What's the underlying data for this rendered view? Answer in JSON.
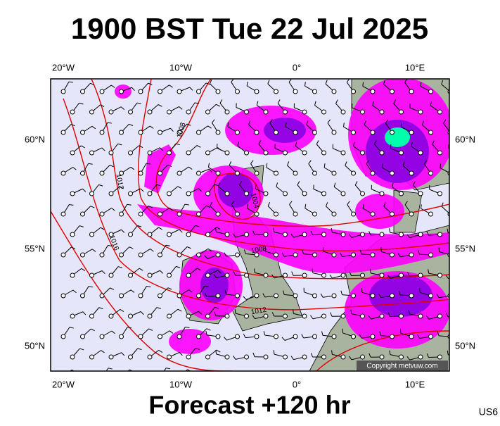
{
  "header": {
    "title": "1900 BST Tue 22 Jul 2025"
  },
  "map": {
    "longitude_labels": [
      "20°W",
      "10°W",
      "0°",
      "10°E"
    ],
    "latitude_labels": [
      "60°N",
      "55°N",
      "50°N"
    ],
    "isobar_labels": [
      "1008",
      "1012",
      "1016",
      "1004",
      "1008",
      "1012"
    ],
    "copyright": "Copyright metvuw.com"
  },
  "footer": {
    "forecast": "Forecast +120 hr",
    "code": "US6"
  }
}
